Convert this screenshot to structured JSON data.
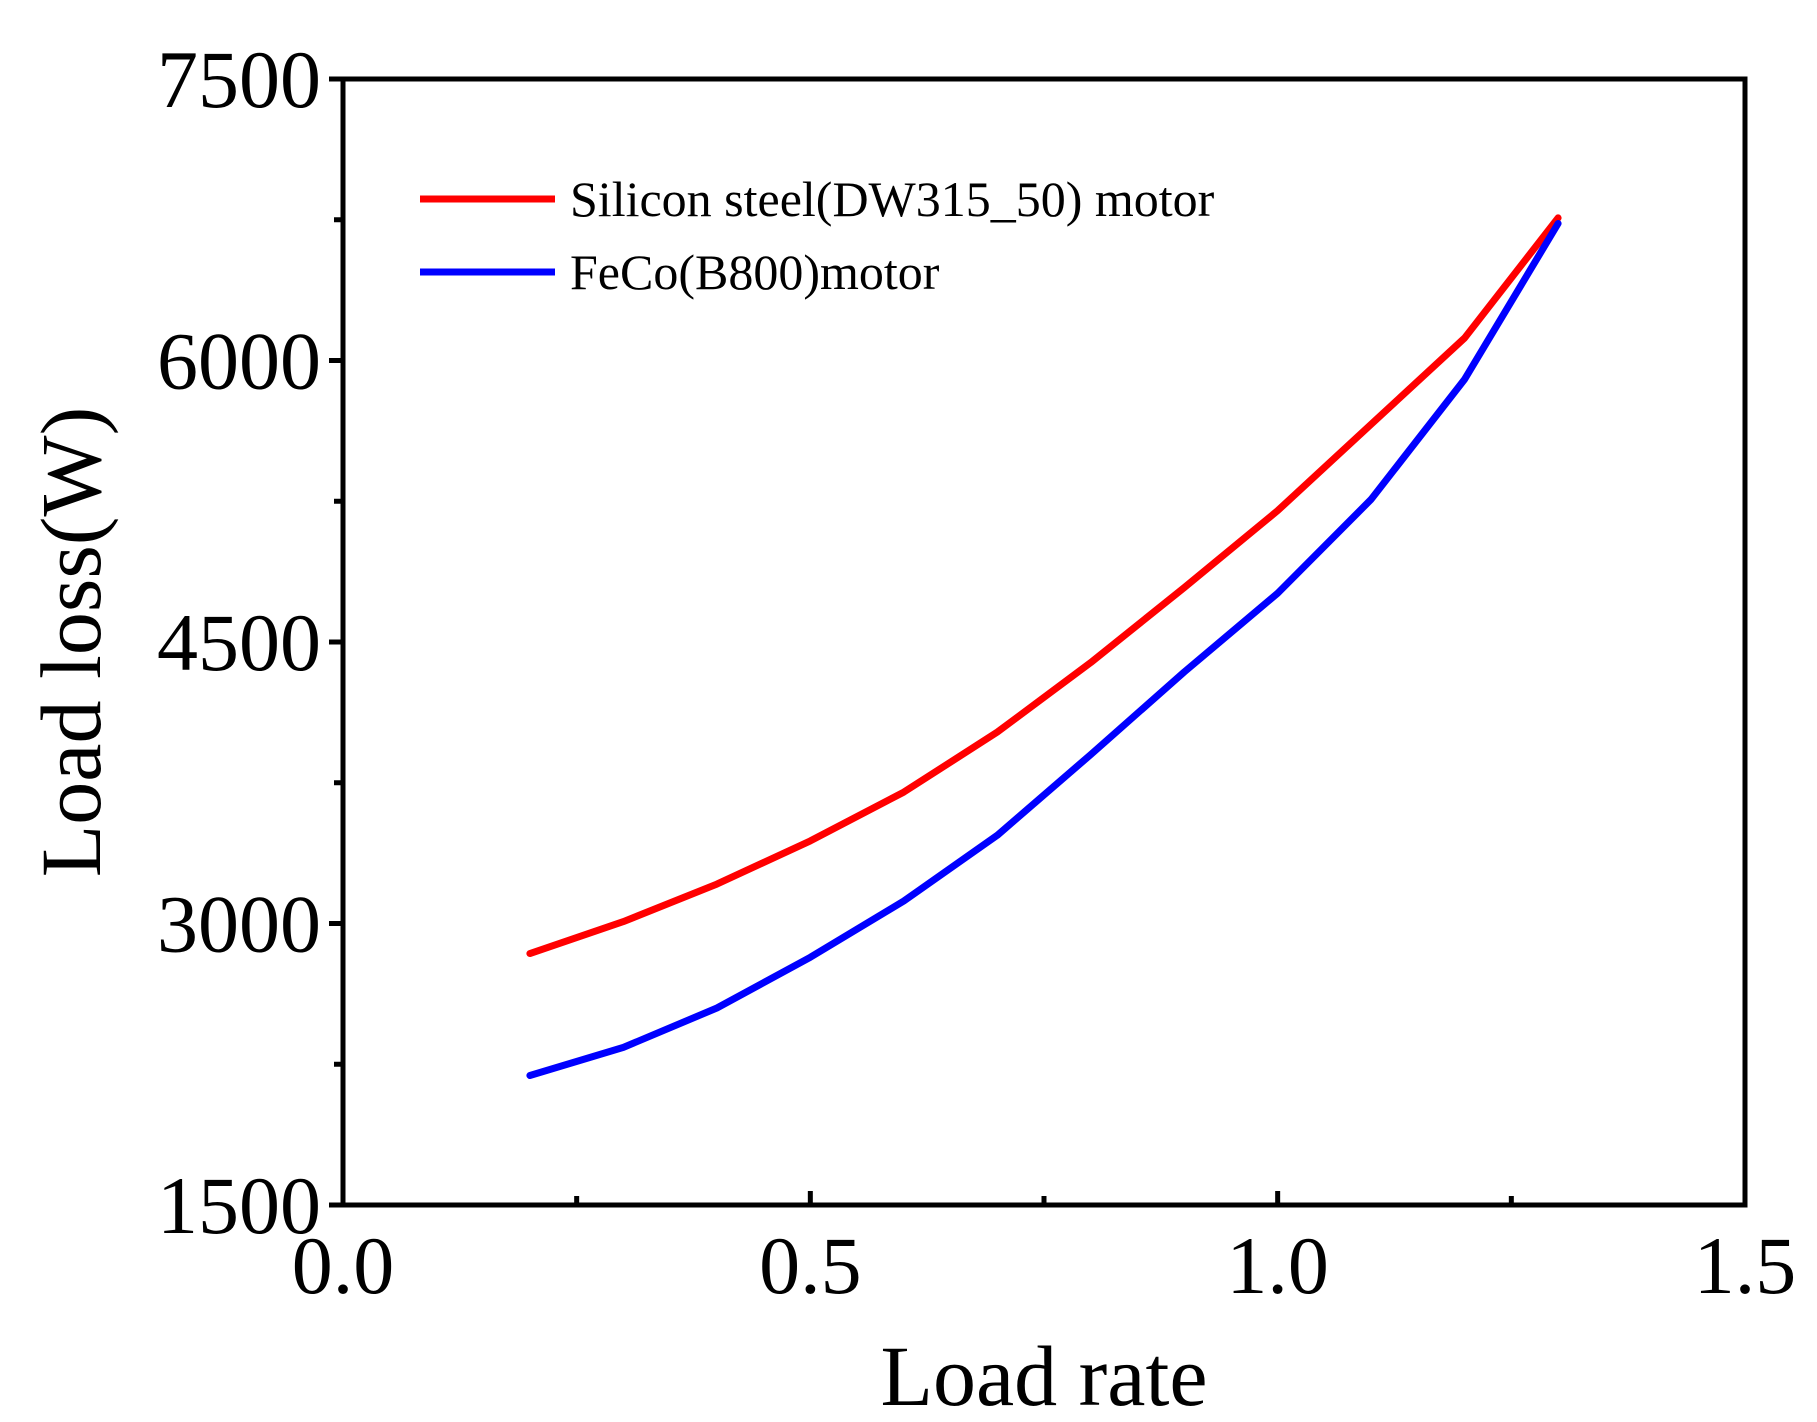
{
  "chart_data": {
    "type": "line",
    "title": "",
    "xlabel": "Load rate",
    "ylabel": "Load loss(W)",
    "xlim": [
      0.0,
      1.5
    ],
    "ylim": [
      1500,
      7500
    ],
    "xticks": [
      0.0,
      0.5,
      1.0,
      1.5
    ],
    "xtick_labels": [
      "0.0",
      "0.5",
      "1.0",
      "1.5"
    ],
    "yticks": [
      1500,
      3000,
      4500,
      6000,
      7500
    ],
    "ytick_labels": [
      "1500",
      "3000",
      "4500",
      "6000",
      "7500"
    ],
    "grid": false,
    "legend_position": "top-left",
    "series": [
      {
        "name": "Silicon steel(DW315_50) motor",
        "color": "#ff0000",
        "x": [
          0.2,
          0.3,
          0.4,
          0.5,
          0.6,
          0.7,
          0.8,
          0.9,
          1.0,
          1.1,
          1.2,
          1.3
        ],
        "y": [
          2840,
          3010,
          3210,
          3440,
          3700,
          4020,
          4390,
          4790,
          5200,
          5660,
          6120,
          6760
        ]
      },
      {
        "name": "FeCo(B800)motor",
        "color": "#0000ff",
        "x": [
          0.2,
          0.3,
          0.4,
          0.5,
          0.6,
          0.7,
          0.8,
          0.9,
          1.0,
          1.1,
          1.2,
          1.3
        ],
        "y": [
          2190,
          2340,
          2550,
          2820,
          3120,
          3470,
          3900,
          4340,
          4760,
          5260,
          5900,
          6730
        ]
      }
    ]
  }
}
